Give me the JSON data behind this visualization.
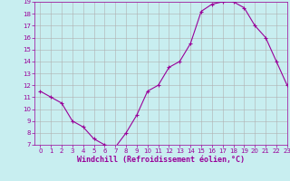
{
  "x": [
    0,
    1,
    2,
    3,
    4,
    5,
    6,
    7,
    8,
    9,
    10,
    11,
    12,
    13,
    14,
    15,
    16,
    17,
    18,
    19,
    20,
    21,
    22,
    23
  ],
  "y": [
    11.5,
    11.0,
    10.5,
    9.0,
    8.5,
    7.5,
    7.0,
    6.8,
    8.0,
    9.5,
    11.5,
    12.0,
    13.5,
    14.0,
    15.5,
    18.2,
    18.8,
    19.0,
    19.0,
    18.5,
    17.0,
    16.0,
    14.0,
    12.0
  ],
  "line_color": "#990099",
  "marker": "+",
  "marker_size": 3,
  "marker_linewidth": 0.8,
  "bg_color": "#c8eef0",
  "grid_color": "#b0b0b0",
  "xlabel": "Windchill (Refroidissement éolien,°C)",
  "ylim": [
    7,
    19
  ],
  "xlim": [
    -0.5,
    23
  ],
  "yticks": [
    7,
    8,
    9,
    10,
    11,
    12,
    13,
    14,
    15,
    16,
    17,
    18,
    19
  ],
  "xticks": [
    0,
    1,
    2,
    3,
    4,
    5,
    6,
    7,
    8,
    9,
    10,
    11,
    12,
    13,
    14,
    15,
    16,
    17,
    18,
    19,
    20,
    21,
    22,
    23
  ],
  "tick_color": "#990099",
  "tick_fontsize": 5.0,
  "xlabel_fontsize": 6.0,
  "line_width": 0.8,
  "spine_color": "#990099",
  "spine_linewidth": 0.5
}
